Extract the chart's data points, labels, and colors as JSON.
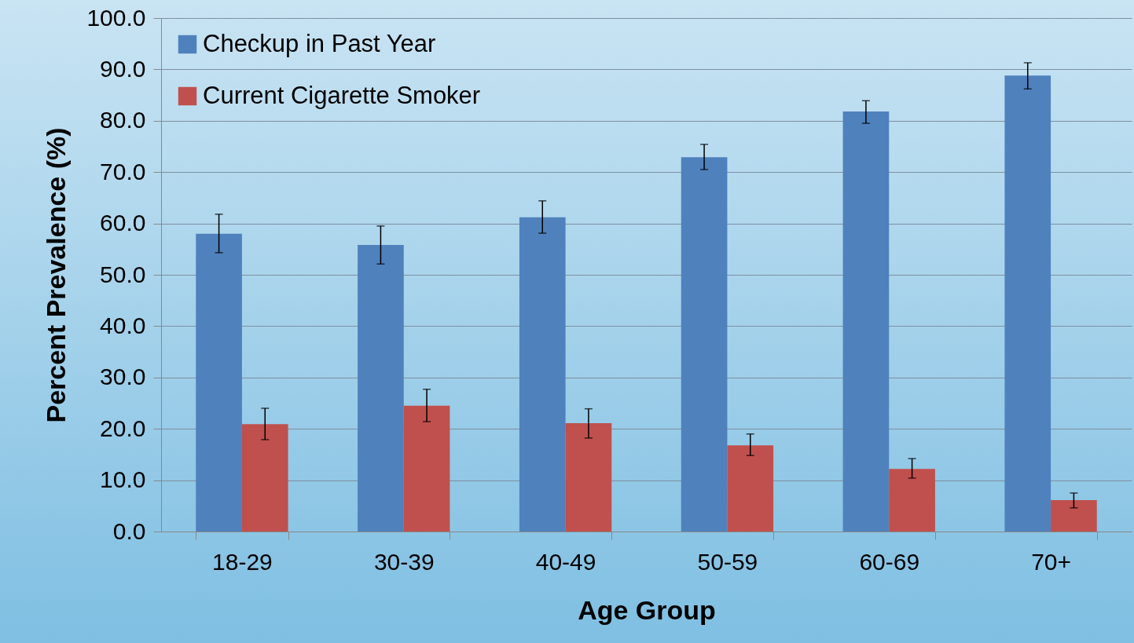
{
  "chart_data": {
    "type": "bar",
    "xlabel": "Age Group",
    "ylabel": "Percent Prevalence (%)",
    "categories": [
      "18-29",
      "30-39",
      "40-49",
      "50-59",
      "60-69",
      "70+"
    ],
    "series": [
      {
        "name": "Checkup in Past Year",
        "color": "#4f81bd",
        "values": [
          58.0,
          55.8,
          61.2,
          72.9,
          81.8,
          88.8
        ],
        "errors": [
          [
            54.3,
            61.8
          ],
          [
            52.1,
            59.5
          ],
          [
            58.1,
            64.4
          ],
          [
            70.5,
            75.4
          ],
          [
            79.5,
            83.9
          ],
          [
            86.2,
            91.3
          ]
        ]
      },
      {
        "name": "Current Cigarette Smoker",
        "color": "#c0504d",
        "values": [
          20.9,
          24.5,
          21.1,
          16.8,
          12.2,
          6.1
        ],
        "errors": [
          [
            17.9,
            24.0
          ],
          [
            21.4,
            27.7
          ],
          [
            18.2,
            23.9
          ],
          [
            14.8,
            19.0
          ],
          [
            10.4,
            14.2
          ],
          [
            4.6,
            7.5
          ]
        ]
      }
    ],
    "ylim": [
      0,
      100
    ],
    "yticks": [
      {
        "value": 0,
        "label": "0.0"
      },
      {
        "value": 10,
        "label": "10.0"
      },
      {
        "value": 20,
        "label": "20.0"
      },
      {
        "value": 30,
        "label": "30.0"
      },
      {
        "value": 40,
        "label": "40.0"
      },
      {
        "value": 50,
        "label": "50.0"
      },
      {
        "value": 60,
        "label": "60.0"
      },
      {
        "value": 70,
        "label": "70.0"
      },
      {
        "value": 80,
        "label": "80.0"
      },
      {
        "value": 90,
        "label": "90.0"
      },
      {
        "value": 100,
        "label": "100.0"
      }
    ],
    "grid": "y",
    "legend": "top left"
  }
}
